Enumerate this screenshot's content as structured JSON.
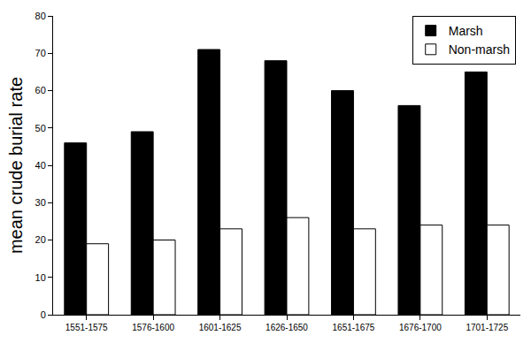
{
  "chart_data": {
    "type": "bar",
    "y_label": "mean crude burial rate",
    "categories": [
      "1551-1575",
      "1576-1600",
      "1601-1625",
      "1626-1650",
      "1651-1675",
      "1676-1700",
      "1701-1725"
    ],
    "series": [
      {
        "name": "Marsh",
        "color": "#000000",
        "values": [
          46,
          49,
          71,
          68,
          60,
          56,
          65
        ]
      },
      {
        "name": "Non-marsh",
        "color": "#ffffff",
        "values": [
          19,
          20,
          23,
          26,
          23,
          24,
          24
        ]
      }
    ],
    "ylim": [
      0,
      80
    ],
    "yticks": [
      0,
      10,
      20,
      30,
      40,
      50,
      60,
      70,
      80
    ],
    "grid": false,
    "legend": "upper right"
  }
}
